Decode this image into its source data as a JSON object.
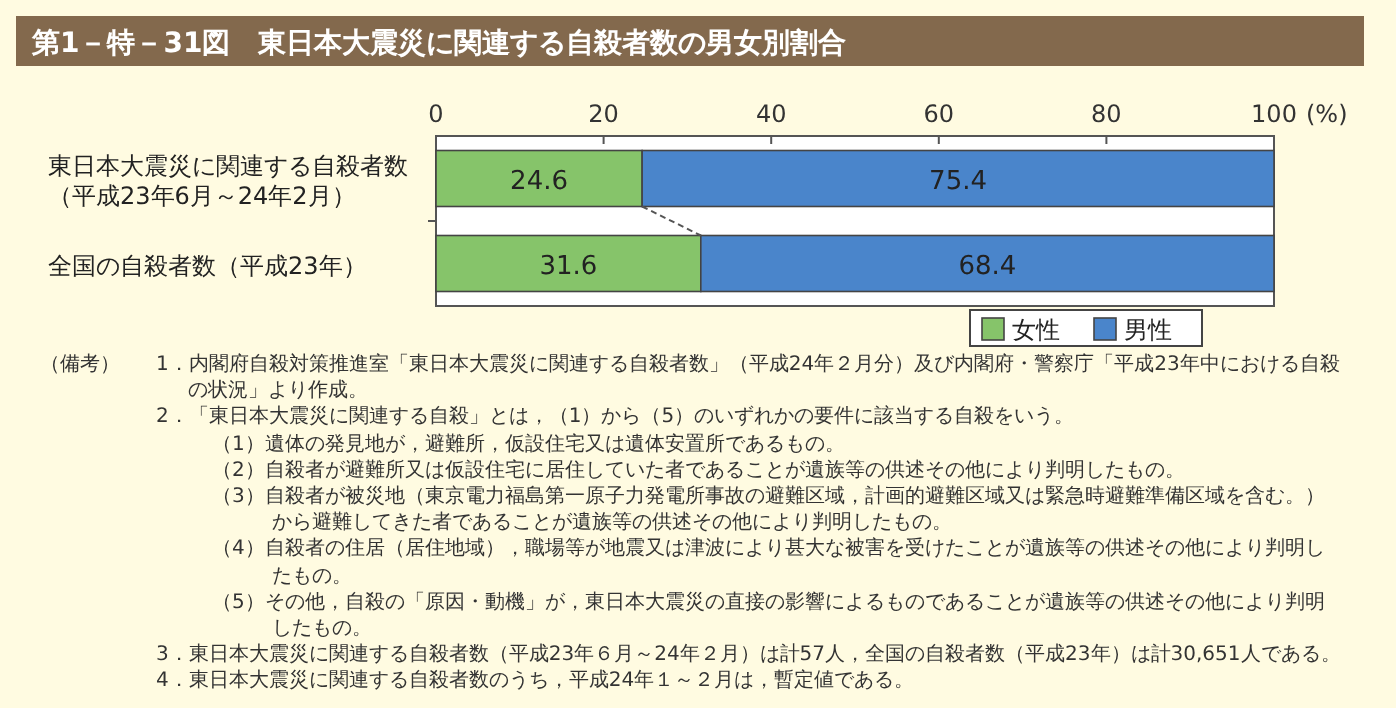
{
  "chart_data": {
    "type": "bar",
    "orientation": "horizontal",
    "stacked": true,
    "title": "第1－特－31図　東日本大震災に関連する自殺者数の男女別割合",
    "categories": [
      "東日本大震災に関連する自殺者数（平成23年6月～24年2月）",
      "全国の自殺者数（平成23年）"
    ],
    "series": [
      {
        "name": "女性",
        "color": "#86c46a",
        "values": [
          24.6,
          31.6
        ]
      },
      {
        "name": "男性",
        "color": "#4a85cb",
        "values": [
          75.4,
          68.4
        ]
      }
    ],
    "xlim": [
      0,
      100
    ],
    "xticks": [
      0,
      20,
      40,
      60,
      80,
      100
    ],
    "xlabel": "(%)",
    "data_labels": true,
    "legend": "bottom right",
    "annotations": [
      "（備考）",
      "1．内閣府自殺対策推進室「東日本大震災に関連する自殺者数」（平成24年２月分）及び内閣府・警察庁「平成23年中における自殺の状況」より作成。",
      "2．「東日本大震災に関連する自殺」とは，（1）から（5）のいずれかの要件に該当する自殺をいう。",
      "（1）遺体の発見地が，避難所，仮設住宅又は遺体安置所であるもの。",
      "（2）自殺者が避難所又は仮設住宅に居住していた者であることが遺族等の供述その他により判明したもの。",
      "（3）自殺者が被災地（東京電力福島第一原子力発電所事故の避難区域，計画的避難区域又は緊急時避難準備区域を含む。）から避難してきた者であることが遺族等の供述その他により判明したもの。",
      "（4）自殺者の住居（居住地域），職場等が地震又は津波により甚大な被害を受けたことが遺族等の供述その他により判明したもの。",
      "（5）その他，自殺の「原因・動機」が，東日本大震災の直接の影響によるものであることが遺族等の供述その他により判明したもの。",
      "3．東日本大震災に関連する自殺者数（平成23年６月～24年２月）は計57人，全国の自殺者数（平成23年）は計30,651人である。",
      "4．東日本大震災に関連する自殺者数のうち，平成24年１～２月は，暫定値である。"
    ]
  }
}
